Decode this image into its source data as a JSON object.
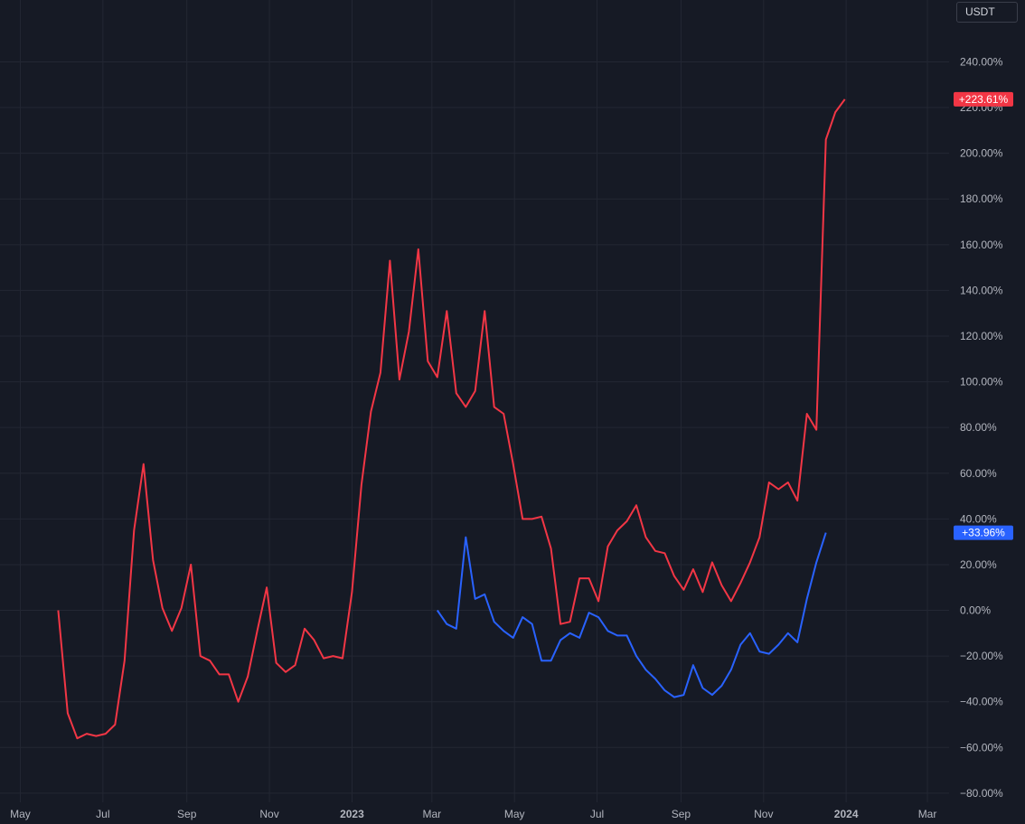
{
  "currency_selector": {
    "label": "USDT"
  },
  "colors": {
    "background": "#161a25",
    "grid": "#232733",
    "axis_text": "#b2b5be",
    "series_red": "#f23645",
    "series_blue": "#2962ff"
  },
  "chart_data": {
    "type": "line",
    "x_unit": "date",
    "y_unit": "percent",
    "y_tick_labels": [
      "240.00%",
      "220.00%",
      "200.00%",
      "180.00%",
      "160.00%",
      "140.00%",
      "120.00%",
      "100.00%",
      "80.00%",
      "60.00%",
      "40.00%",
      "20.00%",
      "0.00%",
      "−20.00%",
      "−40.00%",
      "−60.00%",
      "−80.00%"
    ],
    "y_tick_values": [
      240,
      220,
      200,
      180,
      160,
      140,
      120,
      100,
      80,
      60,
      40,
      20,
      0,
      -20,
      -40,
      -60,
      -80
    ],
    "ylim": [
      -84,
      256
    ],
    "xlim": [
      "2022-04-16",
      "2024-03-17"
    ],
    "x_tick_labels": [
      {
        "label": "May",
        "date": "2022-05-01",
        "bold": false
      },
      {
        "label": "Jul",
        "date": "2022-07-01",
        "bold": false
      },
      {
        "label": "Sep",
        "date": "2022-09-01",
        "bold": false
      },
      {
        "label": "Nov",
        "date": "2022-11-01",
        "bold": false
      },
      {
        "label": "2023",
        "date": "2023-01-01",
        "bold": true
      },
      {
        "label": "Mar",
        "date": "2023-03-01",
        "bold": false
      },
      {
        "label": "May",
        "date": "2023-05-01",
        "bold": false
      },
      {
        "label": "Jul",
        "date": "2023-07-01",
        "bold": false
      },
      {
        "label": "Sep",
        "date": "2023-09-01",
        "bold": false
      },
      {
        "label": "Nov",
        "date": "2023-11-01",
        "bold": false
      },
      {
        "label": "2024",
        "date": "2024-01-01",
        "bold": true
      },
      {
        "label": "Mar",
        "date": "2024-03-01",
        "bold": false
      }
    ],
    "series": [
      {
        "color": "#f23645",
        "last_value_label": "+223.61%",
        "points": [
          [
            "2022-05-29",
            0
          ],
          [
            "2022-06-05",
            -45
          ],
          [
            "2022-06-12",
            -56
          ],
          [
            "2022-06-19",
            -54
          ],
          [
            "2022-06-26",
            -55
          ],
          [
            "2022-07-03",
            -54
          ],
          [
            "2022-07-10",
            -50
          ],
          [
            "2022-07-17",
            -22
          ],
          [
            "2022-07-24",
            35
          ],
          [
            "2022-07-31",
            64
          ],
          [
            "2022-08-07",
            22
          ],
          [
            "2022-08-14",
            1
          ],
          [
            "2022-08-21",
            -9
          ],
          [
            "2022-08-28",
            1
          ],
          [
            "2022-09-04",
            20
          ],
          [
            "2022-09-11",
            -20
          ],
          [
            "2022-09-18",
            -22
          ],
          [
            "2022-09-25",
            -28
          ],
          [
            "2022-10-02",
            -28
          ],
          [
            "2022-10-09",
            -40
          ],
          [
            "2022-10-16",
            -29
          ],
          [
            "2022-10-23",
            -9
          ],
          [
            "2022-10-30",
            10
          ],
          [
            "2022-11-06",
            -23
          ],
          [
            "2022-11-13",
            -27
          ],
          [
            "2022-11-20",
            -24
          ],
          [
            "2022-11-27",
            -8
          ],
          [
            "2022-12-04",
            -13
          ],
          [
            "2022-12-11",
            -21
          ],
          [
            "2022-12-18",
            -20
          ],
          [
            "2022-12-25",
            -21
          ],
          [
            "2023-01-01",
            8
          ],
          [
            "2023-01-08",
            55
          ],
          [
            "2023-01-15",
            87
          ],
          [
            "2023-01-22",
            104
          ],
          [
            "2023-01-29",
            153
          ],
          [
            "2023-02-05",
            101
          ],
          [
            "2023-02-12",
            122
          ],
          [
            "2023-02-19",
            158
          ],
          [
            "2023-02-26",
            109
          ],
          [
            "2023-03-05",
            102
          ],
          [
            "2023-03-12",
            131
          ],
          [
            "2023-03-19",
            95
          ],
          [
            "2023-03-26",
            89
          ],
          [
            "2023-04-02",
            96
          ],
          [
            "2023-04-09",
            131
          ],
          [
            "2023-04-16",
            89
          ],
          [
            "2023-04-23",
            86
          ],
          [
            "2023-04-30",
            64
          ],
          [
            "2023-05-07",
            40
          ],
          [
            "2023-05-14",
            40
          ],
          [
            "2023-05-21",
            41
          ],
          [
            "2023-05-28",
            27
          ],
          [
            "2023-06-04",
            -6
          ],
          [
            "2023-06-11",
            -5
          ],
          [
            "2023-06-18",
            14
          ],
          [
            "2023-06-25",
            14
          ],
          [
            "2023-07-02",
            4
          ],
          [
            "2023-07-09",
            28
          ],
          [
            "2023-07-16",
            35
          ],
          [
            "2023-07-23",
            39
          ],
          [
            "2023-07-30",
            46
          ],
          [
            "2023-08-06",
            32
          ],
          [
            "2023-08-13",
            26
          ],
          [
            "2023-08-20",
            25
          ],
          [
            "2023-08-27",
            15
          ],
          [
            "2023-09-03",
            9
          ],
          [
            "2023-09-10",
            18
          ],
          [
            "2023-09-17",
            8
          ],
          [
            "2023-09-24",
            21
          ],
          [
            "2023-10-01",
            11
          ],
          [
            "2023-10-08",
            4
          ],
          [
            "2023-10-15",
            12
          ],
          [
            "2023-10-22",
            21
          ],
          [
            "2023-10-29",
            32
          ],
          [
            "2023-11-05",
            56
          ],
          [
            "2023-11-12",
            53
          ],
          [
            "2023-11-19",
            56
          ],
          [
            "2023-11-26",
            48
          ],
          [
            "2023-12-03",
            86
          ],
          [
            "2023-12-10",
            79
          ],
          [
            "2023-12-17",
            206
          ],
          [
            "2023-12-24",
            218
          ],
          [
            "2023-12-31",
            223.61
          ]
        ]
      },
      {
        "color": "#2962ff",
        "last_value_label": "+33.96%",
        "points": [
          [
            "2023-03-05",
            0
          ],
          [
            "2023-03-12",
            -6
          ],
          [
            "2023-03-19",
            -8
          ],
          [
            "2023-03-26",
            32
          ],
          [
            "2023-04-02",
            5
          ],
          [
            "2023-04-09",
            7
          ],
          [
            "2023-04-16",
            -5
          ],
          [
            "2023-04-23",
            -9
          ],
          [
            "2023-04-30",
            -12
          ],
          [
            "2023-05-07",
            -3
          ],
          [
            "2023-05-14",
            -6
          ],
          [
            "2023-05-21",
            -22
          ],
          [
            "2023-05-28",
            -22
          ],
          [
            "2023-06-04",
            -13
          ],
          [
            "2023-06-11",
            -10
          ],
          [
            "2023-06-18",
            -12
          ],
          [
            "2023-06-25",
            -1
          ],
          [
            "2023-07-02",
            -3
          ],
          [
            "2023-07-09",
            -9
          ],
          [
            "2023-07-16",
            -11
          ],
          [
            "2023-07-23",
            -11
          ],
          [
            "2023-07-30",
            -20
          ],
          [
            "2023-08-06",
            -26
          ],
          [
            "2023-08-13",
            -30
          ],
          [
            "2023-08-20",
            -35
          ],
          [
            "2023-08-27",
            -38
          ],
          [
            "2023-09-03",
            -37
          ],
          [
            "2023-09-10",
            -24
          ],
          [
            "2023-09-17",
            -34
          ],
          [
            "2023-09-24",
            -37
          ],
          [
            "2023-10-01",
            -33
          ],
          [
            "2023-10-08",
            -26
          ],
          [
            "2023-10-15",
            -15
          ],
          [
            "2023-10-22",
            -10
          ],
          [
            "2023-10-29",
            -18
          ],
          [
            "2023-11-05",
            -19
          ],
          [
            "2023-11-12",
            -15
          ],
          [
            "2023-11-19",
            -10
          ],
          [
            "2023-11-26",
            -14
          ],
          [
            "2023-12-03",
            5
          ],
          [
            "2023-12-10",
            21
          ],
          [
            "2023-12-17",
            33.96
          ]
        ]
      }
    ]
  }
}
